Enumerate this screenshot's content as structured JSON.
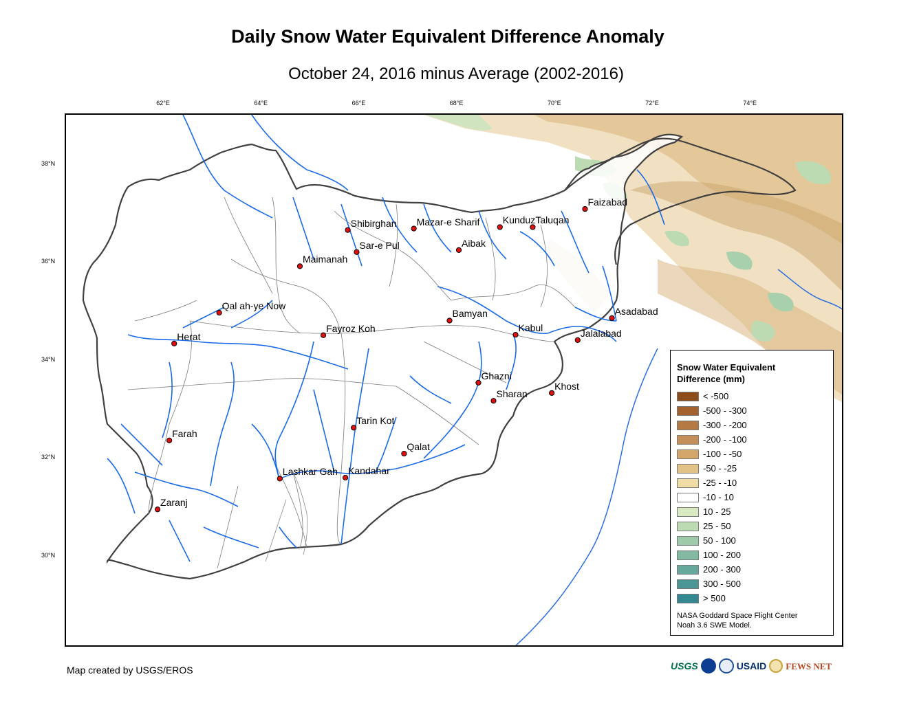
{
  "header": {
    "title": "Daily Snow Water Equivalent Difference Anomaly",
    "subtitle": "October 24, 2016 minus Average (2002-2016)"
  },
  "graticule": {
    "longitudes": [
      "62°E",
      "64°E",
      "66°E",
      "68°E",
      "70°E",
      "72°E",
      "74°E"
    ],
    "latitudes": [
      "38°N",
      "36°N",
      "34°N",
      "32°N",
      "30°N"
    ]
  },
  "cities": [
    {
      "name": "Faizabad",
      "lon": 70.6,
      "lat": 37.1
    },
    {
      "name": "Shibirghan",
      "lon": 65.75,
      "lat": 36.67
    },
    {
      "name": "Mazar-e Sharif",
      "lon": 67.1,
      "lat": 36.7
    },
    {
      "name": "Kunduz",
      "lon": 68.86,
      "lat": 36.73
    },
    {
      "name": "Taluqan",
      "lon": 69.53,
      "lat": 36.73
    },
    {
      "name": "Sar-e Pul",
      "lon": 65.93,
      "lat": 36.22
    },
    {
      "name": "Aibak",
      "lon": 68.02,
      "lat": 36.26
    },
    {
      "name": "Maimanah",
      "lon": 64.77,
      "lat": 35.93
    },
    {
      "name": "Qal ah-ye Now",
      "lon": 63.12,
      "lat": 34.98
    },
    {
      "name": "Bamyan",
      "lon": 67.83,
      "lat": 34.82
    },
    {
      "name": "Asadabad",
      "lon": 71.15,
      "lat": 34.87
    },
    {
      "name": "Kabul",
      "lon": 69.18,
      "lat": 34.53
    },
    {
      "name": "Jalalabad",
      "lon": 70.45,
      "lat": 34.42
    },
    {
      "name": "Herat",
      "lon": 62.2,
      "lat": 34.35
    },
    {
      "name": "Fayroz Koh",
      "lon": 65.25,
      "lat": 34.52
    },
    {
      "name": "Ghazni",
      "lon": 68.42,
      "lat": 33.55
    },
    {
      "name": "Khost",
      "lon": 69.92,
      "lat": 33.34
    },
    {
      "name": "Sharan",
      "lon": 68.73,
      "lat": 33.18
    },
    {
      "name": "Tarin Kot",
      "lon": 65.87,
      "lat": 32.63
    },
    {
      "name": "Farah",
      "lon": 62.1,
      "lat": 32.37
    },
    {
      "name": "Qalat",
      "lon": 66.9,
      "lat": 32.1
    },
    {
      "name": "Lashkar Gah",
      "lon": 64.36,
      "lat": 31.59
    },
    {
      "name": "Kandahar",
      "lon": 65.7,
      "lat": 31.61
    },
    {
      "name": "Zaranj",
      "lon": 61.86,
      "lat": 30.96
    }
  ],
  "legend": {
    "title": "Snow Water Equivalent Difference (mm)",
    "items": [
      {
        "label": "< -500",
        "color": "#8c4c1c"
      },
      {
        "label": "-500 - -300",
        "color": "#a3622d"
      },
      {
        "label": "-300 - -200",
        "color": "#b57a43"
      },
      {
        "label": "-200 - -100",
        "color": "#c68f57"
      },
      {
        "label": "-100 - -50",
        "color": "#d4a66a"
      },
      {
        "label": "-50 - -25",
        "color": "#e2c287"
      },
      {
        "label": "-25 - -10",
        "color": "#f0dca5"
      },
      {
        "label": "-10 - 10",
        "color": "#ffffff"
      },
      {
        "label": "10 - 25",
        "color": "#d9eac3"
      },
      {
        "label": "25 - 50",
        "color": "#bcdbb3"
      },
      {
        "label": "50 - 100",
        "color": "#9fcaa9"
      },
      {
        "label": "100 - 200",
        "color": "#83b9a2"
      },
      {
        "label": "200 - 300",
        "color": "#66a89b"
      },
      {
        "label": "300 - 500",
        "color": "#4b9796"
      },
      {
        "label": "> 500",
        "color": "#338891"
      }
    ],
    "credit_line1": "NASA Goddard Space Flight Center",
    "credit_line2": "Noah 3.6 SWE Model."
  },
  "footer": {
    "credit": "Map created by USGS/EROS"
  },
  "logos": {
    "usgs": "USGS",
    "usaid": "USAID",
    "fews": "FEWS NET",
    "nasa_icon": "nasa-icon",
    "dhs_icon": "seal-icon",
    "fews_icon": "fews-globe-icon"
  }
}
